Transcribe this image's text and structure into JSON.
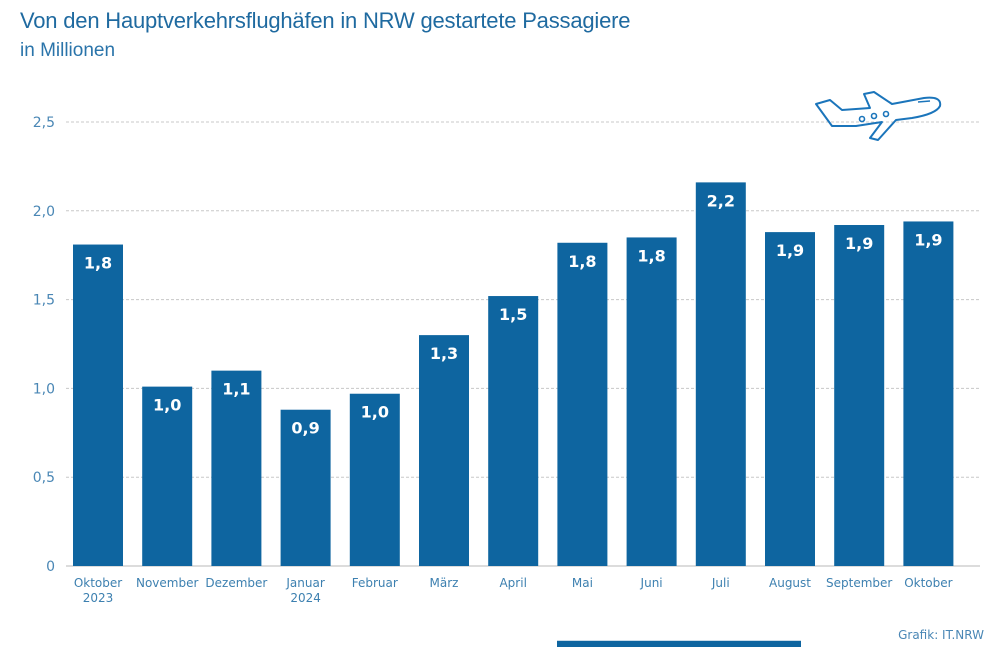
{
  "colors": {
    "bar": "#0e65a0",
    "text": "#1f6aa0",
    "grid": "#c8c8c8",
    "icon": "#1b75bb"
  },
  "icon": "airplane-icon",
  "source": "Grafik: IT.NRW",
  "chart_data": {
    "type": "bar",
    "title": "Von den Hauptverkehrsflughäfen in NRW gestartete Passagiere",
    "subtitle": "in Millionen",
    "xlabel": "",
    "ylabel": "",
    "ylim": [
      0,
      2.5
    ],
    "yticks": [
      0,
      0.5,
      1.0,
      1.5,
      2.0,
      2.5
    ],
    "ytick_labels": [
      "0",
      "0,5",
      "1,0",
      "1,5",
      "2,0",
      "2,5"
    ],
    "grid": true,
    "categories": [
      [
        "Oktober",
        "2023"
      ],
      [
        "November"
      ],
      [
        "Dezember"
      ],
      [
        "Januar",
        "2024"
      ],
      [
        "Februar"
      ],
      [
        "März"
      ],
      [
        "April"
      ],
      [
        "Mai"
      ],
      [
        "Juni"
      ],
      [
        "Juli"
      ],
      [
        "August"
      ],
      [
        "September"
      ],
      [
        "Oktober"
      ]
    ],
    "values": [
      1.81,
      1.01,
      1.1,
      0.88,
      0.97,
      1.3,
      1.52,
      1.82,
      1.85,
      2.16,
      1.88,
      1.92,
      1.94
    ],
    "data_labels": [
      "1,8",
      "1,0",
      "1,1",
      "0,9",
      "1,0",
      "1,3",
      "1,5",
      "1,8",
      "1,8",
      "2,2",
      "1,9",
      "1,9",
      "1,9"
    ]
  }
}
